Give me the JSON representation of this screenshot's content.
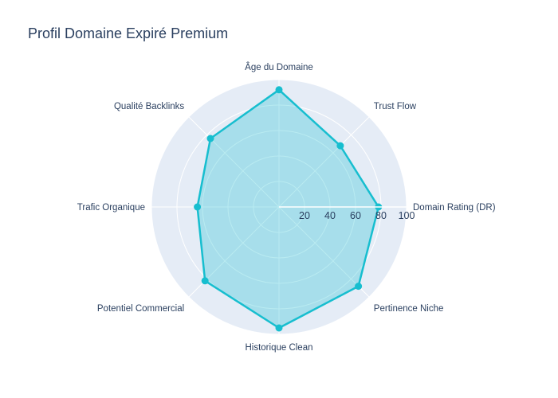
{
  "chart_data": {
    "type": "radar",
    "title": "Profil Domaine Expiré Premium",
    "categories": [
      "Domain Rating (DR)",
      "Trust Flow",
      "Âge du Domaine",
      "Qualité Backlinks",
      "Trafic Organique",
      "Potentiel Commercial",
      "Historique Clean",
      "Pertinence Niche"
    ],
    "series": [
      {
        "values": [
          78,
          68,
          92,
          76,
          64,
          82,
          95,
          88
        ]
      }
    ],
    "radial_range": [
      0,
      100
    ],
    "radial_ticks": [
      "20",
      "40",
      "60",
      "80",
      "100"
    ],
    "grid": true,
    "legend": "none",
    "colors": {
      "line": "#17becf",
      "fill": "#17becf",
      "plot_bg": "#e5ecf6",
      "grid": "#ffffff",
      "text": "#2a3f5f"
    }
  }
}
